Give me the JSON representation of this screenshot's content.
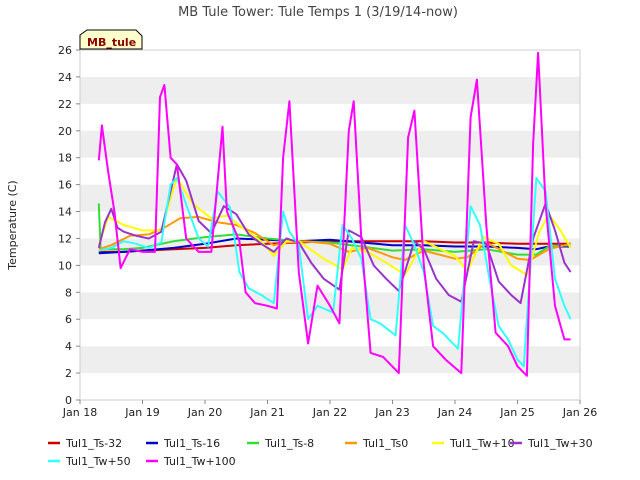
{
  "chart_data": {
    "type": "line",
    "title": "MB Tule Tower: Tule Temps 1 (3/19/14-now)",
    "xlabel": "",
    "ylabel": "Temperature (C)",
    "site_label": "MB_tule",
    "xlim": [
      18,
      26
    ],
    "ylim": [
      0,
      26
    ],
    "x_ticks": [
      18,
      19,
      20,
      21,
      22,
      23,
      24,
      25,
      26
    ],
    "x_tick_labels": [
      "Jan 18",
      "Jan 19",
      "Jan 20",
      "Jan 21",
      "Jan 22",
      "Jan 23",
      "Jan 24",
      "Jan 25",
      "Jan 26"
    ],
    "y_ticks": [
      0,
      2,
      4,
      6,
      8,
      10,
      12,
      14,
      16,
      18,
      20,
      22,
      24,
      26
    ],
    "grid": "alternating horizontal bands",
    "legend_position": "bottom",
    "series": [
      {
        "name": "Tul1_Ts-32",
        "color": "#cc0000",
        "points": [
          [
            18.3,
            11.0
          ],
          [
            18.7,
            11.0
          ],
          [
            19.0,
            11.1
          ],
          [
            19.5,
            11.2
          ],
          [
            20.0,
            11.3
          ],
          [
            20.5,
            11.5
          ],
          [
            21.0,
            11.6
          ],
          [
            21.5,
            11.7
          ],
          [
            22.0,
            11.8
          ],
          [
            22.5,
            11.8
          ],
          [
            23.0,
            11.8
          ],
          [
            23.5,
            11.8
          ],
          [
            24.0,
            11.7
          ],
          [
            24.5,
            11.7
          ],
          [
            25.0,
            11.6
          ],
          [
            25.3,
            11.6
          ],
          [
            25.5,
            11.6
          ],
          [
            25.85,
            11.6
          ]
        ]
      },
      {
        "name": "Tul1_Ts-16",
        "color": "#0000cc",
        "points": [
          [
            18.3,
            10.9
          ],
          [
            18.7,
            11.0
          ],
          [
            19.0,
            11.1
          ],
          [
            19.5,
            11.3
          ],
          [
            20.0,
            11.6
          ],
          [
            20.5,
            12.0
          ],
          [
            21.0,
            11.9
          ],
          [
            21.5,
            11.8
          ],
          [
            22.0,
            11.9
          ],
          [
            22.5,
            11.7
          ],
          [
            23.0,
            11.5
          ],
          [
            23.5,
            11.5
          ],
          [
            24.0,
            11.4
          ],
          [
            24.5,
            11.4
          ],
          [
            25.0,
            11.3
          ],
          [
            25.3,
            11.2
          ],
          [
            25.5,
            11.4
          ],
          [
            25.85,
            11.4
          ]
        ]
      },
      {
        "name": "Tul1_Ts-8",
        "color": "#33dd33",
        "points": [
          [
            18.3,
            14.6
          ],
          [
            18.33,
            11.2
          ],
          [
            18.7,
            11.2
          ],
          [
            19.0,
            11.3
          ],
          [
            19.5,
            11.8
          ],
          [
            20.0,
            12.1
          ],
          [
            20.5,
            12.3
          ],
          [
            21.0,
            12.0
          ],
          [
            21.5,
            11.8
          ],
          [
            22.0,
            11.7
          ],
          [
            22.5,
            11.4
          ],
          [
            23.0,
            11.1
          ],
          [
            23.5,
            11.2
          ],
          [
            24.0,
            11.0
          ],
          [
            24.5,
            11.2
          ],
          [
            25.0,
            10.8
          ],
          [
            25.3,
            10.8
          ],
          [
            25.5,
            11.4
          ],
          [
            25.85,
            11.5
          ]
        ]
      },
      {
        "name": "Tul1_Ts0",
        "color": "#ff9900",
        "points": [
          [
            18.3,
            11.2
          ],
          [
            18.5,
            11.5
          ],
          [
            18.8,
            12.2
          ],
          [
            19.1,
            12.3
          ],
          [
            19.35,
            12.8
          ],
          [
            19.6,
            13.5
          ],
          [
            19.9,
            13.6
          ],
          [
            20.2,
            13.2
          ],
          [
            20.5,
            13.0
          ],
          [
            20.8,
            12.4
          ],
          [
            21.1,
            11.5
          ],
          [
            21.3,
            11.7
          ],
          [
            21.6,
            11.8
          ],
          [
            22.0,
            11.6
          ],
          [
            22.3,
            11.0
          ],
          [
            22.6,
            11.3
          ],
          [
            23.0,
            10.6
          ],
          [
            23.2,
            10.4
          ],
          [
            23.5,
            11.1
          ],
          [
            24.0,
            10.5
          ],
          [
            24.2,
            10.6
          ],
          [
            24.5,
            11.7
          ],
          [
            25.0,
            10.5
          ],
          [
            25.2,
            10.4
          ],
          [
            25.5,
            11.2
          ],
          [
            25.85,
            11.6
          ]
        ]
      },
      {
        "name": "Tul1_Tw+10",
        "color": "#ffff00",
        "points": [
          [
            18.3,
            11.5
          ],
          [
            18.45,
            13.6
          ],
          [
            18.7,
            13.0
          ],
          [
            19.0,
            12.6
          ],
          [
            19.3,
            12.6
          ],
          [
            19.45,
            15.0
          ],
          [
            19.55,
            16.5
          ],
          [
            19.8,
            14.6
          ],
          [
            20.1,
            13.5
          ],
          [
            20.35,
            13.7
          ],
          [
            20.6,
            12.8
          ],
          [
            20.9,
            11.8
          ],
          [
            21.1,
            10.7
          ],
          [
            21.3,
            11.8
          ],
          [
            21.5,
            11.8
          ],
          [
            21.9,
            10.5
          ],
          [
            22.2,
            9.7
          ],
          [
            22.35,
            11.3
          ],
          [
            22.6,
            11.0
          ],
          [
            22.9,
            10.2
          ],
          [
            23.2,
            9.3
          ],
          [
            23.5,
            11.8
          ],
          [
            24.0,
            10.7
          ],
          [
            24.2,
            9.6
          ],
          [
            24.45,
            12.1
          ],
          [
            24.7,
            11.6
          ],
          [
            24.9,
            10.0
          ],
          [
            25.15,
            9.3
          ],
          [
            25.35,
            12.5
          ],
          [
            25.5,
            13.8
          ],
          [
            25.7,
            12.5
          ],
          [
            25.85,
            11.3
          ]
        ]
      },
      {
        "name": "Tul1_Tw+30",
        "color": "#9933cc",
        "points": [
          [
            18.3,
            11.3
          ],
          [
            18.4,
            13.2
          ],
          [
            18.5,
            14.2
          ],
          [
            18.6,
            12.8
          ],
          [
            18.7,
            12.5
          ],
          [
            18.9,
            12.2
          ],
          [
            19.1,
            12.0
          ],
          [
            19.3,
            12.5
          ],
          [
            19.45,
            15.5
          ],
          [
            19.55,
            17.5
          ],
          [
            19.7,
            16.3
          ],
          [
            19.9,
            13.3
          ],
          [
            20.1,
            12.4
          ],
          [
            20.3,
            14.4
          ],
          [
            20.5,
            13.8
          ],
          [
            20.7,
            12.3
          ],
          [
            20.9,
            11.6
          ],
          [
            21.1,
            11.0
          ],
          [
            21.3,
            12.0
          ],
          [
            21.5,
            11.7
          ],
          [
            21.7,
            10.2
          ],
          [
            21.9,
            9.0
          ],
          [
            22.15,
            8.2
          ],
          [
            22.3,
            12.6
          ],
          [
            22.5,
            12.1
          ],
          [
            22.7,
            10.0
          ],
          [
            22.9,
            9.0
          ],
          [
            23.1,
            8.1
          ],
          [
            23.35,
            11.8
          ],
          [
            23.5,
            11.2
          ],
          [
            23.7,
            9.0
          ],
          [
            23.9,
            7.8
          ],
          [
            24.1,
            7.3
          ],
          [
            24.3,
            11.8
          ],
          [
            24.5,
            11.6
          ],
          [
            24.7,
            8.8
          ],
          [
            24.9,
            7.8
          ],
          [
            25.05,
            7.2
          ],
          [
            25.25,
            12.0
          ],
          [
            25.45,
            14.6
          ],
          [
            25.6,
            12.6
          ],
          [
            25.75,
            10.2
          ],
          [
            25.85,
            9.5
          ]
        ]
      },
      {
        "name": "Tul1_Tw+50",
        "color": "#33ffff",
        "points": [
          [
            18.3,
            11.1
          ],
          [
            18.5,
            11.3
          ],
          [
            18.7,
            11.8
          ],
          [
            18.9,
            11.6
          ],
          [
            19.1,
            11.3
          ],
          [
            19.3,
            11.7
          ],
          [
            19.45,
            16.0
          ],
          [
            19.55,
            16.5
          ],
          [
            19.7,
            14.5
          ],
          [
            19.9,
            12.0
          ],
          [
            20.05,
            11.4
          ],
          [
            20.2,
            15.5
          ],
          [
            20.4,
            14.3
          ],
          [
            20.55,
            9.5
          ],
          [
            20.7,
            8.3
          ],
          [
            20.9,
            7.8
          ],
          [
            21.1,
            7.2
          ],
          [
            21.25,
            14.0
          ],
          [
            21.35,
            12.5
          ],
          [
            21.5,
            11.5
          ],
          [
            21.65,
            6.0
          ],
          [
            21.8,
            7.0
          ],
          [
            22.05,
            6.5
          ],
          [
            22.2,
            13.0
          ],
          [
            22.35,
            12.0
          ],
          [
            22.5,
            10.5
          ],
          [
            22.65,
            6.0
          ],
          [
            22.8,
            5.7
          ],
          [
            23.05,
            4.8
          ],
          [
            23.2,
            13.0
          ],
          [
            23.35,
            11.5
          ],
          [
            23.5,
            9.5
          ],
          [
            23.65,
            5.5
          ],
          [
            23.8,
            5.0
          ],
          [
            24.05,
            3.8
          ],
          [
            24.25,
            14.4
          ],
          [
            24.4,
            13.0
          ],
          [
            24.55,
            9.0
          ],
          [
            24.7,
            5.5
          ],
          [
            24.85,
            4.5
          ],
          [
            25.0,
            3.0
          ],
          [
            25.1,
            2.5
          ],
          [
            25.3,
            16.5
          ],
          [
            25.45,
            15.5
          ],
          [
            25.6,
            9.0
          ],
          [
            25.75,
            7.0
          ],
          [
            25.85,
            6.0
          ]
        ]
      },
      {
        "name": "Tul1_Tw+100",
        "color": "#ff00ff",
        "points": [
          [
            18.3,
            17.8
          ],
          [
            18.35,
            20.4
          ],
          [
            18.45,
            17.0
          ],
          [
            18.55,
            14.0
          ],
          [
            18.65,
            9.8
          ],
          [
            18.8,
            11.2
          ],
          [
            19.0,
            11.0
          ],
          [
            19.2,
            11.0
          ],
          [
            19.28,
            22.5
          ],
          [
            19.35,
            23.4
          ],
          [
            19.45,
            18.0
          ],
          [
            19.55,
            17.5
          ],
          [
            19.7,
            12.0
          ],
          [
            19.9,
            11.0
          ],
          [
            20.1,
            11.0
          ],
          [
            20.28,
            20.3
          ],
          [
            20.35,
            14.0
          ],
          [
            20.55,
            11.8
          ],
          [
            20.65,
            8.0
          ],
          [
            20.8,
            7.2
          ],
          [
            21.0,
            7.0
          ],
          [
            21.15,
            6.8
          ],
          [
            21.25,
            18.0
          ],
          [
            21.35,
            22.2
          ],
          [
            21.5,
            9.5
          ],
          [
            21.65,
            4.2
          ],
          [
            21.8,
            8.5
          ],
          [
            22.0,
            7.0
          ],
          [
            22.15,
            5.7
          ],
          [
            22.3,
            20.0
          ],
          [
            22.38,
            22.2
          ],
          [
            22.5,
            12.0
          ],
          [
            22.65,
            3.5
          ],
          [
            22.85,
            3.2
          ],
          [
            23.1,
            2.0
          ],
          [
            23.25,
            19.5
          ],
          [
            23.35,
            21.5
          ],
          [
            23.5,
            10.0
          ],
          [
            23.65,
            4.0
          ],
          [
            23.85,
            3.0
          ],
          [
            24.1,
            2.0
          ],
          [
            24.25,
            21.0
          ],
          [
            24.35,
            23.8
          ],
          [
            24.5,
            13.0
          ],
          [
            24.65,
            5.0
          ],
          [
            24.85,
            4.0
          ],
          [
            25.0,
            2.5
          ],
          [
            25.15,
            1.8
          ],
          [
            25.25,
            19.0
          ],
          [
            25.33,
            25.8
          ],
          [
            25.45,
            14.5
          ],
          [
            25.6,
            7.0
          ],
          [
            25.75,
            4.5
          ],
          [
            25.85,
            4.5
          ]
        ]
      }
    ]
  }
}
